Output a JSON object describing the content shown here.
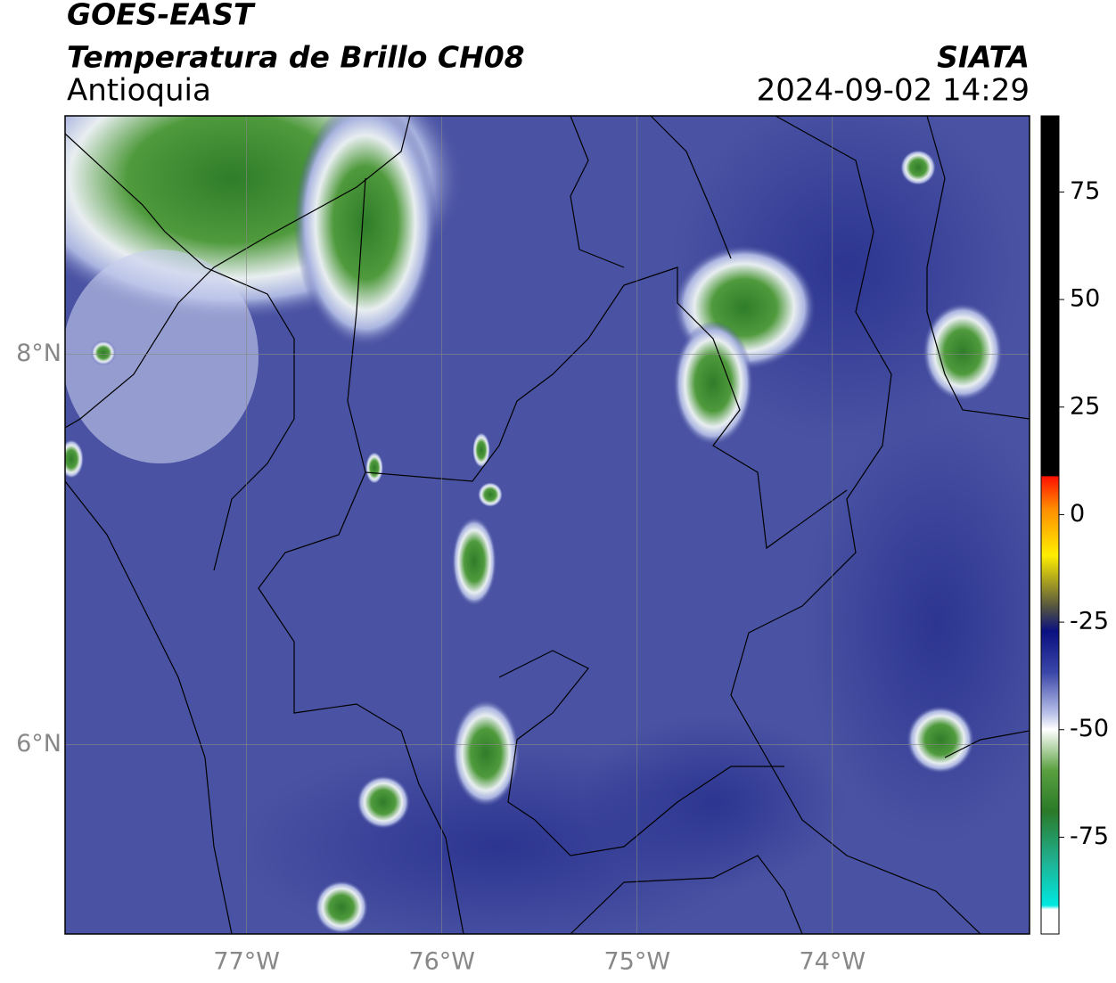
{
  "header": {
    "title": "GOES-EAST",
    "subtitle": "Temperatura de Brillo CH08",
    "region": "Antioquia",
    "source": "SIATA",
    "datetime": "2024-09-02 14:29"
  },
  "map": {
    "xlim": [
      -77.93,
      -72.99
    ],
    "ylim": [
      5.03,
      9.22
    ],
    "xticks": [
      {
        "value": -77,
        "label": "77°W"
      },
      {
        "value": -76,
        "label": "76°W"
      },
      {
        "value": -75,
        "label": "75°W"
      },
      {
        "value": -74,
        "label": "74°W"
      }
    ],
    "yticks": [
      {
        "value": 8,
        "label": "8°N"
      },
      {
        "value": 6,
        "label": "6°N"
      }
    ]
  },
  "colorbar": {
    "lim": [
      -97.5,
      92.7
    ],
    "ticks": [
      75,
      50,
      25,
      0,
      -25,
      -50,
      -75
    ]
  }
}
